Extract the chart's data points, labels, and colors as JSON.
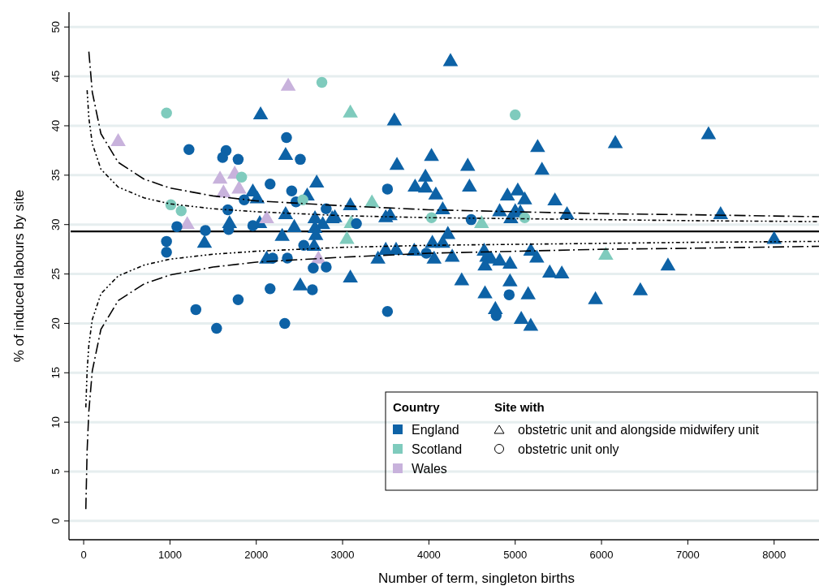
{
  "chart_data": {
    "type": "scatter",
    "xlabel": "Number of term, singleton births",
    "ylabel": "% of induced labours by site",
    "xlim": [
      -170,
      8520
    ],
    "ylim": [
      -1.9,
      51.5
    ],
    "xticks": [
      0,
      1000,
      2000,
      3000,
      4000,
      5000,
      6000,
      7000,
      8000
    ],
    "yticks": [
      0,
      5,
      10,
      15,
      20,
      25,
      30,
      35,
      40,
      45,
      50
    ],
    "grid": "y",
    "legend": "bottom right",
    "legend_title": "Country",
    "annotations": [
      "Site with",
      "obstetric unit and alongside midwifery unit",
      "obstetric unit only"
    ],
    "ref_lines": [
      {
        "axis": "y",
        "value": 29.3,
        "color": "#000000",
        "line_style": "solid"
      }
    ],
    "series": [
      {
        "name": "England",
        "color": "#0d62a6",
        "marker": "triangle",
        "x": [
          4250,
          2050,
          3600,
          2340,
          7240,
          6160,
          5260,
          3630,
          4030,
          5310,
          2700,
          4450,
          3840,
          3960,
          3960,
          4080,
          4470,
          5460,
          4910,
          5030,
          5110,
          4160,
          1960,
          2010,
          2590,
          2340,
          2680,
          2770,
          1690,
          2040,
          2440,
          2680,
          2690,
          2300,
          2670,
          1400,
          2120,
          2510,
          2880,
          3090,
          2910,
          3500,
          3550,
          4820,
          5000,
          5060,
          4950,
          5600,
          4220,
          4040,
          4160,
          3500,
          3620,
          3830,
          3410,
          4060,
          4270,
          4640,
          4670,
          4720,
          4650,
          4820,
          4940,
          5180,
          5250,
          3090,
          4380,
          4940,
          5400,
          5540,
          4650,
          5150,
          4770,
          5070,
          5180,
          7380,
          8000,
          6770,
          6450,
          5930
        ],
        "values": [
          46.6,
          41.2,
          40.6,
          37.1,
          39.2,
          38.3,
          37.9,
          36.1,
          37.0,
          35.6,
          34.3,
          36.0,
          33.9,
          34.9,
          33.8,
          33.1,
          33.9,
          32.5,
          33.0,
          33.5,
          32.6,
          31.6,
          33.4,
          32.7,
          33.0,
          31.1,
          30.7,
          30.1,
          30.2,
          30.2,
          29.8,
          29.7,
          29.0,
          28.9,
          27.9,
          28.2,
          26.6,
          23.9,
          30.7,
          32.0,
          30.8,
          30.8,
          31.0,
          31.4,
          31.4,
          31.3,
          30.7,
          31.1,
          29.1,
          28.2,
          28.2,
          27.5,
          27.5,
          27.4,
          26.6,
          26.6,
          26.8,
          27.4,
          26.8,
          26.6,
          25.9,
          26.4,
          26.1,
          27.4,
          26.7,
          24.7,
          24.4,
          24.3,
          25.2,
          25.1,
          23.1,
          23.0,
          21.5,
          20.5,
          19.8,
          31.1,
          28.6,
          25.9,
          23.4,
          22.5
        ]
      },
      {
        "name": "Scotland",
        "color": "#7fcbbd",
        "marker": "triangle",
        "x": [
          3090,
          3340,
          3100,
          3050,
          4610,
          6050
        ],
        "values": [
          41.4,
          32.3,
          30.2,
          28.6,
          30.2,
          27.0
        ]
      },
      {
        "name": "Wales",
        "color": "#c8b2dc",
        "marker": "triangle",
        "x": [
          400,
          2370,
          1580,
          1620,
          1750,
          1800,
          1200,
          2120,
          2720
        ],
        "values": [
          38.5,
          44.1,
          34.7,
          33.3,
          35.2,
          33.7,
          30.1,
          30.7,
          26.6
        ]
      },
      {
        "color": "#0d62a6",
        "marker": "circle",
        "x": [
          2350,
          1220,
          1650,
          1610,
          1790,
          2510,
          2160,
          2410,
          1860,
          2460,
          2810,
          1670,
          1080,
          1410,
          1680,
          1960,
          960,
          960,
          2190,
          2360,
          2550,
          2660,
          2810,
          2160,
          2650,
          1790,
          1300,
          1540,
          2330,
          3520,
          3160,
          4490,
          3970,
          4930,
          4780,
          3520
        ],
        "values": [
          38.8,
          37.6,
          37.5,
          36.8,
          36.6,
          36.6,
          34.1,
          33.4,
          32.5,
          32.3,
          31.6,
          31.5,
          29.8,
          29.4,
          29.5,
          29.9,
          28.3,
          27.2,
          26.6,
          26.6,
          27.9,
          25.6,
          25.7,
          23.5,
          23.4,
          22.4,
          21.4,
          19.5,
          20.0,
          33.6,
          30.1,
          30.5,
          27.1,
          22.9,
          20.8,
          21.2
        ]
      },
      {
        "color": "#7fcbbd",
        "marker": "circle",
        "x": [
          960,
          2760,
          5000,
          1010,
          1130,
          1830,
          2540,
          4030,
          5110
        ],
        "values": [
          41.3,
          44.4,
          41.1,
          32.0,
          31.4,
          34.8,
          32.5,
          30.7,
          30.7
        ]
      },
      {
        "type": "line",
        "color": "#000000",
        "line_style": "dashed",
        "x": [
          60,
          100,
          200,
          400,
          700,
          1000,
          1500,
          2000,
          3000,
          4000,
          5000,
          6000,
          7000,
          8520
        ],
        "values": [
          47.5,
          43.4,
          39.2,
          36.3,
          34.6,
          33.7,
          32.9,
          32.4,
          31.9,
          31.5,
          31.3,
          31.1,
          31.0,
          30.8
        ]
      },
      {
        "type": "line",
        "color": "#000000",
        "line_style": "dashed",
        "x": [
          25,
          40,
          60,
          100,
          200,
          400,
          700,
          1000,
          1500,
          2000,
          3000,
          4000,
          5000,
          6000,
          7000,
          8520
        ],
        "values": [
          1.2,
          7.1,
          11.1,
          15.2,
          19.4,
          22.3,
          24.0,
          24.9,
          25.7,
          26.2,
          26.7,
          27.1,
          27.3,
          27.5,
          27.6,
          27.8
        ]
      },
      {
        "type": "line",
        "color": "#000000",
        "line_style": "dotted",
        "x": [
          40,
          60,
          100,
          200,
          400,
          700,
          1000,
          1500,
          2000,
          3000,
          4000,
          5000,
          6000,
          7000,
          8520
        ],
        "values": [
          43.6,
          40.8,
          38.2,
          35.6,
          33.8,
          32.7,
          32.1,
          31.6,
          31.3,
          30.9,
          30.7,
          30.6,
          30.5,
          30.4,
          30.3
        ]
      },
      {
        "type": "line",
        "color": "#000000",
        "line_style": "dotted",
        "x": [
          25,
          40,
          60,
          100,
          200,
          400,
          700,
          1000,
          1500,
          2000,
          3000,
          4000,
          5000,
          6000,
          7000,
          8520
        ],
        "values": [
          11.5,
          15.2,
          17.8,
          20.4,
          23.0,
          24.8,
          25.9,
          26.5,
          27.0,
          27.3,
          27.7,
          27.9,
          28.0,
          28.1,
          28.2,
          28.3
        ]
      }
    ]
  }
}
